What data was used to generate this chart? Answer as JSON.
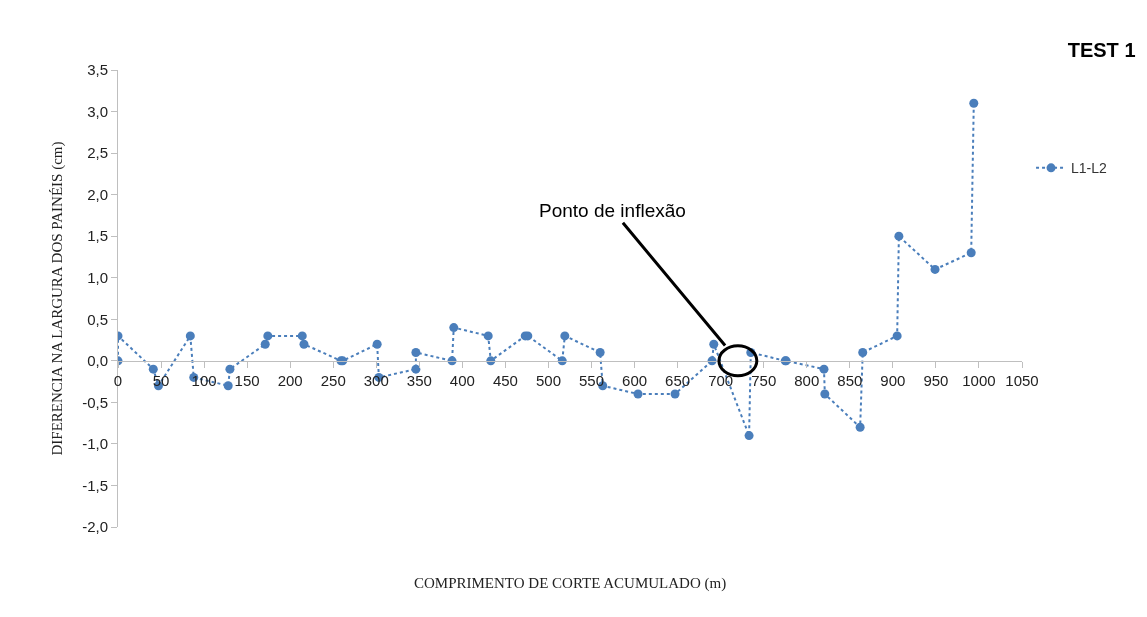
{
  "chart_data": {
    "type": "line",
    "title": "TEST 1",
    "xlabel": "COMPRIMENTO DE CORTE ACUMULADO (m)",
    "ylabel": "DIFERENCIA NA LARGURA DOS PAINÉIS (cm)",
    "x": [
      0,
      0,
      41,
      47,
      84,
      88,
      128,
      130,
      171,
      174,
      214,
      216,
      259,
      261,
      301,
      303,
      346,
      346,
      388,
      390,
      430,
      433,
      473,
      476,
      516,
      519,
      560,
      563,
      604,
      647,
      690,
      692,
      733,
      735,
      775,
      776,
      820,
      821,
      862,
      865,
      905,
      907,
      949,
      991,
      994
    ],
    "series": [
      {
        "name": "L1-L2",
        "color": "#4a7ebb",
        "values": [
          0.0,
          0.3,
          -0.1,
          -0.3,
          0.3,
          -0.2,
          -0.3,
          -0.1,
          0.2,
          0.3,
          0.3,
          0.2,
          0.0,
          0.0,
          0.2,
          -0.2,
          -0.1,
          0.1,
          0.0,
          0.4,
          0.3,
          0.0,
          0.3,
          0.3,
          0.0,
          0.3,
          0.1,
          -0.3,
          -0.4,
          -0.4,
          0.0,
          0.2,
          -0.9,
          0.1,
          0.0,
          0.0,
          -0.1,
          -0.4,
          -0.8,
          0.1,
          0.3,
          1.5,
          1.1,
          1.3,
          3.1
        ]
      }
    ],
    "marker": "circle",
    "line_style": "dotted",
    "legend": "right",
    "xlim": [
      0,
      1050
    ],
    "xticks": [
      0,
      50,
      100,
      150,
      200,
      250,
      300,
      350,
      400,
      450,
      500,
      550,
      600,
      650,
      700,
      750,
      800,
      850,
      900,
      950,
      1000,
      1050
    ],
    "ylim": [
      -2,
      3.5
    ],
    "yticks": [
      {
        "value": -2,
        "label": "-2,0"
      },
      {
        "value": -1.5,
        "label": "-1,5"
      },
      {
        "value": -1,
        "label": "-1,0"
      },
      {
        "value": -0.5,
        "label": "-0,5"
      },
      {
        "value": 0,
        "label": "0,0"
      },
      {
        "value": 0.5,
        "label": "0,5"
      },
      {
        "value": 1,
        "label": "1,0"
      },
      {
        "value": 1.5,
        "label": "1,5"
      },
      {
        "value": 2,
        "label": "2,0"
      },
      {
        "value": 2.5,
        "label": "2,5"
      },
      {
        "value": 3,
        "label": "3,0"
      },
      {
        "value": 3.5,
        "label": "3,5"
      }
    ],
    "annotations": [
      {
        "text": "Ponto de inflexão",
        "x": 720,
        "y": 0
      }
    ]
  }
}
